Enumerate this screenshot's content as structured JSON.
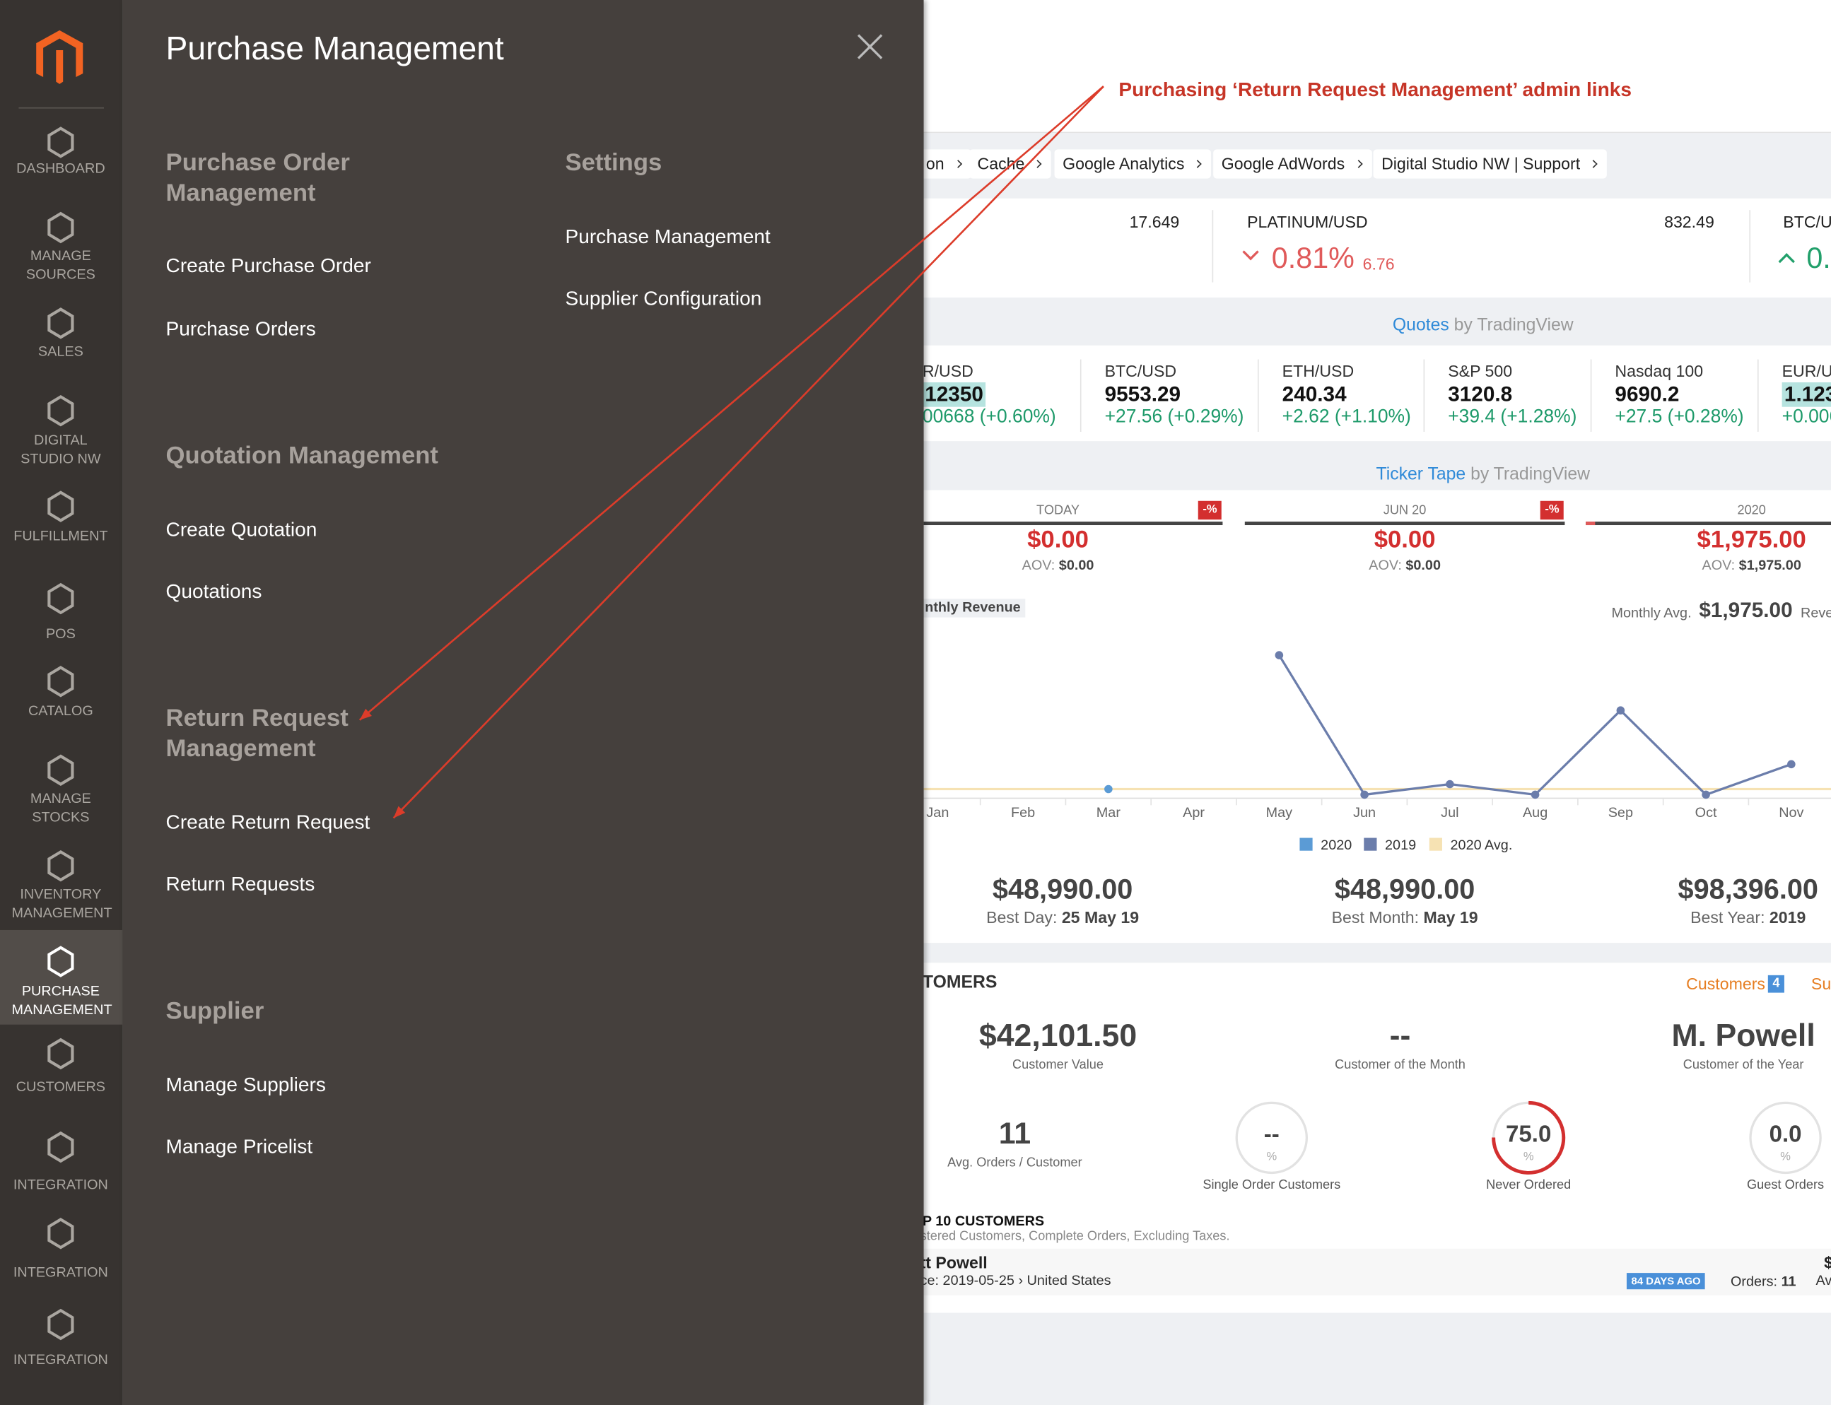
{
  "sidebar": {
    "items": [
      "DASHBOARD",
      "MANAGE SOURCES",
      "SALES",
      "DIGITAL STUDIO NW",
      "FULFILLMENT",
      "POS",
      "CATALOG",
      "MANAGE STOCKS",
      "INVENTORY MANAGEMENT",
      "PURCHASE MANAGEMENT",
      "CUSTOMERS",
      "INTEGRATION",
      "INTEGRATION",
      "INTEGRATION"
    ],
    "active": 9
  },
  "panel": {
    "title": "Purchase Management",
    "columns": [
      [
        {
          "heading": "Purchase Order Management",
          "links": [
            "Create Purchase Order",
            "Purchase Orders"
          ]
        },
        {
          "heading": "Quotation Management",
          "links": [
            "Create Quotation",
            "Quotations"
          ]
        },
        {
          "heading": "Return Request Management",
          "links": [
            "Create Return Request",
            "Return Requests"
          ]
        },
        {
          "heading": "Supplier",
          "links": [
            "Manage Suppliers",
            "Manage Pricelist"
          ]
        }
      ],
      [
        {
          "heading": "Settings",
          "links": [
            "Purchase Management",
            "Supplier Configuration"
          ]
        }
      ]
    ]
  },
  "annotation": "Purchasing ‘Return Request Management’ admin links",
  "dashboard": {
    "breadcrumbs": [
      "on",
      "Cache",
      "Google Analytics",
      "Google AdWords",
      "Digital Studio NW | Support"
    ],
    "ticker": {
      "first_value": "17.649",
      "symbol": "PLATINUM/USD",
      "change": "0.81%",
      "delta": "6.76",
      "price": "832.49",
      "next_symbol": "BTC/U",
      "next_change": "0."
    },
    "quotes_title": "Quotes",
    "quotes_by": "by TradingView",
    "quotes": [
      {
        "symbol": "R/USD",
        "price": "12350",
        "change": "00668 (+0.60%)",
        "highlight": true
      },
      {
        "symbol": "BTC/USD",
        "price": "9553.29",
        "change": "+27.56 (+0.29%)",
        "highlight": false
      },
      {
        "symbol": "ETH/USD",
        "price": "240.34",
        "change": "+2.62 (+1.10%)",
        "highlight": false
      },
      {
        "symbol": "S&P 500",
        "price": "3120.8",
        "change": "+39.4 (+1.28%)",
        "highlight": false
      },
      {
        "symbol": "Nasdaq 100",
        "price": "9690.2",
        "change": "+27.5 (+0.28%)",
        "highlight": false
      },
      {
        "symbol": "EUR/U",
        "price": "1.123",
        "change": "+0.006",
        "highlight": true
      }
    ],
    "ticker_title": "Ticker Tape",
    "ticker_by": "by TradingView",
    "kpis": [
      {
        "label": "TODAY",
        "badge": "-%",
        "value": "$0.00",
        "aov_label": "AOV:",
        "aov": "$0.00"
      },
      {
        "label": "JUN 20",
        "badge": "-%",
        "value": "$0.00",
        "aov_label": "AOV:",
        "aov": "$0.00"
      },
      {
        "label": "2020",
        "value": "$1,975.00",
        "aov_label": "AOV:",
        "aov": "$1,975.00"
      }
    ],
    "revenue_tag": "nthly Revenue",
    "monthly_avg_label": "Monthly Avg.",
    "monthly_avg_value": "$1,975.00",
    "revenue_cut": "Reve",
    "revenue_chart": {
      "type": "line",
      "categories": [
        "Jan",
        "Feb",
        "Mar",
        "Apr",
        "May",
        "Jun",
        "Jul",
        "Aug",
        "Sep",
        "Oct",
        "Nov"
      ],
      "ylim": [
        0,
        50000
      ],
      "series": [
        {
          "name": "2020",
          "color": "#5b9bd5",
          "values": [
            null,
            null,
            1975,
            null,
            null,
            null,
            null,
            null,
            null,
            null,
            null
          ]
        },
        {
          "name": "2019",
          "color": "#6b7dab",
          "values": [
            null,
            null,
            null,
            null,
            48990,
            0,
            3700,
            0,
            29600,
            0,
            10700
          ]
        }
      ],
      "avg": {
        "name": "2020 Avg.",
        "color": "#f6e2b3",
        "value": 1975
      }
    },
    "totals": [
      {
        "value": "$48,990.00",
        "label": "Best Day:",
        "detail": "25 May 19"
      },
      {
        "value": "$48,990.00",
        "label": "Best Month:",
        "detail": "May 19"
      },
      {
        "value": "$98,396.00",
        "label": "Best Year:",
        "detail": "2019"
      }
    ],
    "customers": {
      "title": "TOMERS",
      "link": "Customers",
      "count": "4",
      "link2": "Su",
      "stats": [
        {
          "value": "$42,101.50",
          "label": "Customer Value"
        },
        {
          "value": "--",
          "label": "Customer of the Month"
        },
        {
          "value": "M. Powell",
          "label": "Customer of the Year"
        }
      ],
      "avg_orders": {
        "value": "11",
        "label": "Avg. Orders / Customer"
      },
      "rings": [
        {
          "label": "--",
          "unit": "%",
          "caption": "Single Order Customers"
        },
        {
          "value": 75,
          "label": "75.0",
          "unit": "%",
          "caption": "Never Ordered"
        },
        {
          "value": 0,
          "label": "0.0",
          "unit": "%",
          "caption": "Guest Orders"
        }
      ],
      "top_title": "P 10 CUSTOMERS",
      "top_sub": "stered Customers, Complete Orders, Excluding Taxes.",
      "row": {
        "name": "tt Powell",
        "since": "ce: 2019-05-25 › United States",
        "badge": "84 DAYS AGO",
        "orders_label": "Orders:",
        "orders": "11",
        "cut": "Av",
        "cut2": "$"
      }
    }
  }
}
